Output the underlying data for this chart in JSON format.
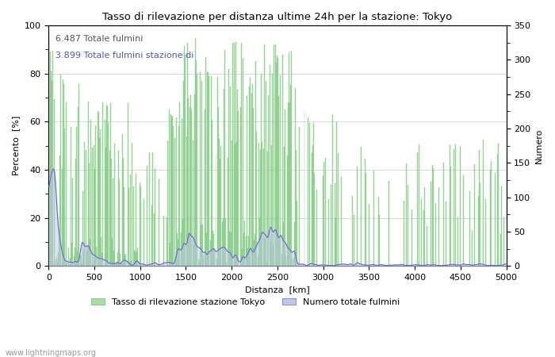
{
  "title": "Tasso di rilevazione per distanza ultime 24h per la stazione: Tokyo",
  "xlabel": "Distanza  [km]",
  "ylabel_left": "Percento  [%]",
  "ylabel_right": "Numero",
  "xlim": [
    0,
    5000
  ],
  "ylim_left": [
    0,
    100
  ],
  "ylim_right": [
    0,
    350
  ],
  "xticks": [
    0,
    500,
    1000,
    1500,
    2000,
    2500,
    3000,
    3500,
    4000,
    4500,
    5000
  ],
  "yticks_left": [
    0,
    20,
    40,
    60,
    80,
    100
  ],
  "yticks_right": [
    0,
    50,
    100,
    150,
    200,
    250,
    300,
    350
  ],
  "annotation1": "6.487 Totale fulmini",
  "annotation2": "3.899 Totale fulmini stazione di",
  "legend1": "Tasso di rilevazione stazione Tokyo",
  "legend2": "Numero totale fulmini",
  "color_green": "#aaddaa",
  "color_green_edge": "#66bb66",
  "color_blue_line": "#6666cc",
  "color_blue_fill": "#c0c8e8",
  "website": "www.lightningmaps.org",
  "bin_width": 10,
  "num_bins": 500
}
